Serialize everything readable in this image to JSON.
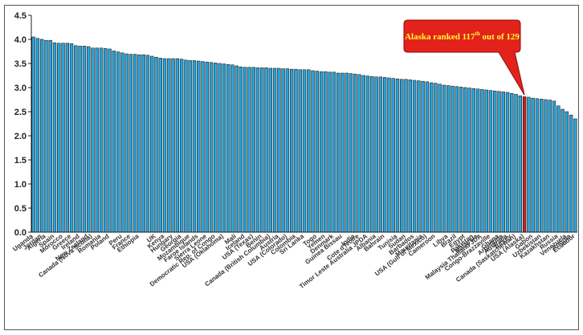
{
  "chart_data": {
    "type": "bar",
    "title": "",
    "xlabel": "",
    "ylabel": "",
    "ylim": [
      0,
      4.5
    ],
    "yticks": [
      "0.0",
      "0.5",
      "1.0",
      "1.5",
      "2.0",
      "2.5",
      "3.0",
      "3.5",
      "4.0",
      "4.5"
    ],
    "grid": false,
    "legend": "none",
    "bar_color": "#29a3d9",
    "highlight_color": "#c8201c",
    "highlight_index": 116,
    "values": [
      4.05,
      4.02,
      4.0,
      3.98,
      3.98,
      3.93,
      3.92,
      3.92,
      3.92,
      3.91,
      3.87,
      3.86,
      3.86,
      3.85,
      3.82,
      3.82,
      3.82,
      3.81,
      3.8,
      3.76,
      3.74,
      3.72,
      3.7,
      3.69,
      3.69,
      3.68,
      3.68,
      3.67,
      3.65,
      3.63,
      3.61,
      3.6,
      3.6,
      3.6,
      3.6,
      3.59,
      3.57,
      3.56,
      3.56,
      3.55,
      3.54,
      3.53,
      3.52,
      3.51,
      3.5,
      3.49,
      3.48,
      3.47,
      3.45,
      3.43,
      3.42,
      3.42,
      3.42,
      3.41,
      3.41,
      3.41,
      3.4,
      3.4,
      3.4,
      3.39,
      3.39,
      3.38,
      3.38,
      3.37,
      3.37,
      3.37,
      3.35,
      3.34,
      3.33,
      3.33,
      3.32,
      3.32,
      3.3,
      3.3,
      3.3,
      3.29,
      3.28,
      3.27,
      3.25,
      3.24,
      3.23,
      3.22,
      3.22,
      3.21,
      3.2,
      3.19,
      3.18,
      3.17,
      3.17,
      3.16,
      3.15,
      3.14,
      3.13,
      3.12,
      3.1,
      3.09,
      3.07,
      3.05,
      3.04,
      3.03,
      3.02,
      3.01,
      3.0,
      2.99,
      2.98,
      2.97,
      2.96,
      2.95,
      2.94,
      2.93,
      2.92,
      2.91,
      2.9,
      2.88,
      2.86,
      2.83,
      2.81,
      2.8,
      2.78,
      2.77,
      2.76,
      2.75,
      2.74,
      2.72,
      2.62,
      2.55,
      2.5,
      2.43,
      2.35
    ],
    "category_labels": [
      {
        "index": 0,
        "text": "Uganda"
      },
      {
        "index": 2,
        "text": "Jordan"
      },
      {
        "index": 3,
        "text": "Algeria"
      },
      {
        "index": 5,
        "text": "Spain"
      },
      {
        "index": 7,
        "text": "Morocco"
      },
      {
        "index": 9,
        "text": "Greece"
      },
      {
        "index": 11,
        "text": "Ireland"
      },
      {
        "index": 13,
        "text": "New Zealand"
      },
      {
        "index": 14,
        "text": "Canada (Nova Scotia)"
      },
      {
        "index": 16,
        "text": "Romania"
      },
      {
        "index": 18,
        "text": "Poland"
      },
      {
        "index": 21,
        "text": "Peru"
      },
      {
        "index": 23,
        "text": "France"
      },
      {
        "index": 25,
        "text": "Ethiopia"
      },
      {
        "index": 29,
        "text": "UK"
      },
      {
        "index": 31,
        "text": "Kenya"
      },
      {
        "index": 33,
        "text": "Hungary"
      },
      {
        "index": 35,
        "text": "Georgia"
      },
      {
        "index": 37,
        "text": "Mozambique"
      },
      {
        "index": 39,
        "text": "Faroe Islands"
      },
      {
        "index": 41,
        "text": "Sierra Leone"
      },
      {
        "index": 43,
        "text": "Democratic Rep. of Congo"
      },
      {
        "index": 45,
        "text": "USA (Oklahoma)"
      },
      {
        "index": 48,
        "text": "Mali"
      },
      {
        "index": 50,
        "text": "Iceland"
      },
      {
        "index": 52,
        "text": "USA (Texas)"
      },
      {
        "index": 54,
        "text": "Benin"
      },
      {
        "index": 56,
        "text": "Canada (British Columbia)"
      },
      {
        "index": 58,
        "text": "Austria"
      },
      {
        "index": 60,
        "text": "USA (Colorado)"
      },
      {
        "index": 62,
        "text": "Colombia"
      },
      {
        "index": 64,
        "text": "Sri Lanka"
      },
      {
        "index": 67,
        "text": "Togo"
      },
      {
        "index": 69,
        "text": "Yemen"
      },
      {
        "index": 71,
        "text": "Denmark"
      },
      {
        "index": 73,
        "text": "Guinea Bissau"
      },
      {
        "index": 76,
        "text": "India"
      },
      {
        "index": 77,
        "text": "Cote d'Ivoire"
      },
      {
        "index": 79,
        "text": "Timor Leste Australia JPDA"
      },
      {
        "index": 81,
        "text": "Albania"
      },
      {
        "index": 83,
        "text": "Bahrain"
      },
      {
        "index": 86,
        "text": "Tunisia"
      },
      {
        "index": 88,
        "text": "Sudan"
      },
      {
        "index": 90,
        "text": "Barbados"
      },
      {
        "index": 92,
        "text": "Mauritania"
      },
      {
        "index": 93,
        "text": "USA (Gulf of Mexico)"
      },
      {
        "index": 95,
        "text": "Cameroon"
      },
      {
        "index": 98,
        "text": "Libya"
      },
      {
        "index": 100,
        "text": "Brazil"
      },
      {
        "index": 102,
        "text": "Egypt"
      },
      {
        "index": 104,
        "text": "Pakistan"
      },
      {
        "index": 105,
        "text": "Malaysia"
      },
      {
        "index": 106,
        "text": "Malaysia Thailand JDA"
      },
      {
        "index": 108,
        "text": "Congo-Brazzaville"
      },
      {
        "index": 110,
        "text": "Ghana"
      },
      {
        "index": 111,
        "text": "Argentina"
      },
      {
        "index": 112,
        "text": "Australia"
      },
      {
        "index": 113,
        "text": "Turkey"
      },
      {
        "index": 114,
        "text": "Canada (Saskatchewan)"
      },
      {
        "index": 116,
        "text": "USA (Alaska)"
      },
      {
        "index": 118,
        "text": "Gabon"
      },
      {
        "index": 120,
        "text": "Uzbekistan"
      },
      {
        "index": 122,
        "text": "Kazakhstan"
      },
      {
        "index": 124,
        "text": "Russia"
      },
      {
        "index": 126,
        "text": "Venezuela"
      },
      {
        "index": 127,
        "text": "Angola"
      },
      {
        "index": 128,
        "text": "Ecuador"
      }
    ],
    "annotation": {
      "text_main": "Alaska ranked 117",
      "text_sup": "th",
      "text_tail": " out of 129",
      "fill": "#e3221c"
    }
  }
}
